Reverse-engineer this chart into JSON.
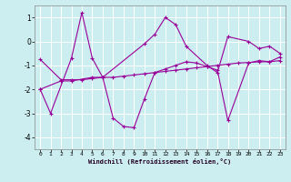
{
  "xlabel": "Windchill (Refroidissement éolien,°C)",
  "bg_color": "#cceef0",
  "line_color": "#990099",
  "grid_color": "#ffffff",
  "xlim": [
    -0.5,
    23.5
  ],
  "ylim": [
    -4.5,
    1.5
  ],
  "yticks": [
    -4,
    -3,
    -2,
    -1,
    0,
    1
  ],
  "xticks": [
    0,
    1,
    2,
    3,
    4,
    5,
    6,
    7,
    8,
    9,
    10,
    11,
    12,
    13,
    14,
    15,
    16,
    17,
    18,
    19,
    20,
    21,
    22,
    23
  ],
  "s1_x": [
    0,
    1,
    3,
    4,
    5,
    6,
    10,
    11,
    12,
    13,
    14,
    16,
    17,
    18,
    20,
    21,
    22,
    23
  ],
  "s1_y": [
    -2.0,
    -3.0,
    -0.7,
    1.2,
    -0.7,
    -1.5,
    -0.1,
    0.3,
    1.0,
    0.7,
    -0.2,
    -1.0,
    -1.3,
    0.2,
    0.0,
    -0.3,
    -0.2,
    -0.5
  ],
  "s2_x": [
    0,
    2,
    3,
    5,
    6,
    7,
    8,
    9,
    10,
    11,
    12,
    13,
    14,
    15,
    16,
    17,
    18,
    20,
    21,
    22,
    23
  ],
  "s2_y": [
    -2.0,
    -1.65,
    -1.65,
    -1.5,
    -1.5,
    -3.2,
    -3.55,
    -3.6,
    -2.4,
    -1.3,
    -1.15,
    -1.0,
    -0.85,
    -0.9,
    -1.05,
    -1.2,
    -3.3,
    -0.9,
    -0.8,
    -0.85,
    -0.65
  ],
  "s3_x": [
    0,
    2,
    3,
    4,
    5,
    6,
    7,
    8,
    9,
    10,
    11,
    12,
    13,
    14,
    15,
    16,
    17,
    18,
    19,
    20,
    21,
    22,
    23
  ],
  "s3_y": [
    -0.75,
    -1.6,
    -1.6,
    -1.6,
    -1.55,
    -1.5,
    -1.5,
    -1.45,
    -1.4,
    -1.35,
    -1.3,
    -1.25,
    -1.2,
    -1.15,
    -1.1,
    -1.05,
    -1.0,
    -0.95,
    -0.9,
    -0.88,
    -0.85,
    -0.85,
    -0.8
  ]
}
